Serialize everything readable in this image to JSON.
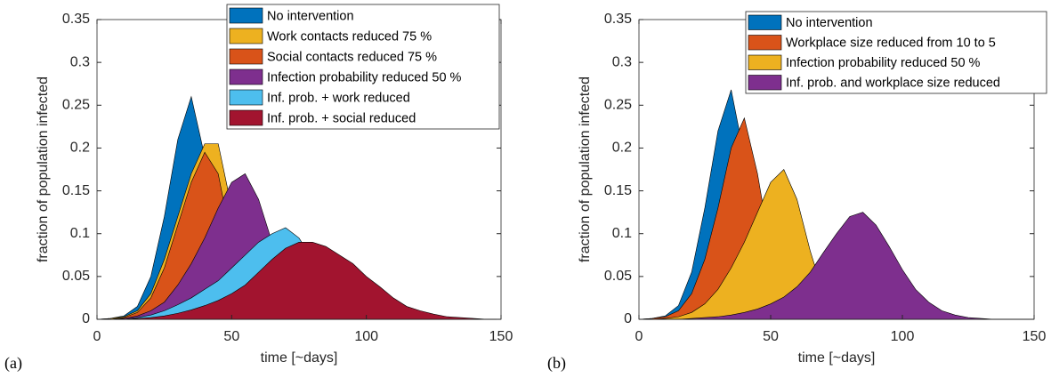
{
  "chart_data": [
    {
      "type": "area",
      "panel_label": "(a)",
      "xlabel": "time [~days]",
      "ylabel": "fraction of population infected",
      "xlim": [
        0,
        150
      ],
      "xticks": [
        0,
        50,
        100,
        150
      ],
      "ylim": [
        0,
        0.35
      ],
      "yticks": [
        0,
        0.05,
        0.1,
        0.15,
        0.2,
        0.25,
        0.3,
        0.35
      ],
      "legend": "upper right",
      "x": [
        0,
        5,
        10,
        15,
        20,
        25,
        30,
        35,
        40,
        45,
        50,
        55,
        60,
        65,
        70,
        75,
        80,
        85,
        90,
        95,
        100,
        105,
        110,
        115,
        120,
        125,
        130,
        135,
        140,
        145,
        150
      ],
      "series": [
        {
          "name": "No intervention",
          "color": "#0072bd",
          "values": [
            0,
            0.001,
            0.004,
            0.015,
            0.05,
            0.12,
            0.21,
            0.26,
            0.19,
            0.08,
            0.02,
            0.003,
            0.001,
            0,
            0,
            0,
            0,
            0,
            0,
            0,
            0,
            0,
            0,
            0,
            0,
            0,
            0,
            0,
            0,
            0,
            0
          ]
        },
        {
          "name": "Work contacts reduced 75 %",
          "color": "#edb120",
          "values": [
            0,
            0.001,
            0.003,
            0.01,
            0.03,
            0.07,
            0.12,
            0.17,
            0.205,
            0.205,
            0.13,
            0.05,
            0.01,
            0.002,
            0,
            0,
            0,
            0,
            0,
            0,
            0,
            0,
            0,
            0,
            0,
            0,
            0,
            0,
            0,
            0,
            0
          ]
        },
        {
          "name": "Social contacts reduced 75 %",
          "color": "#d95319",
          "values": [
            0,
            0,
            0.002,
            0.008,
            0.025,
            0.06,
            0.11,
            0.16,
            0.195,
            0.17,
            0.09,
            0.03,
            0.006,
            0.001,
            0,
            0,
            0,
            0,
            0,
            0,
            0,
            0,
            0,
            0,
            0,
            0,
            0,
            0,
            0,
            0,
            0
          ]
        },
        {
          "name": "Infection probability reduced 50 %",
          "color": "#7e2f8e",
          "values": [
            0,
            0,
            0.001,
            0.004,
            0.01,
            0.02,
            0.04,
            0.065,
            0.095,
            0.13,
            0.16,
            0.17,
            0.14,
            0.09,
            0.04,
            0.01,
            0.003,
            0,
            0,
            0,
            0,
            0,
            0,
            0,
            0,
            0,
            0,
            0,
            0,
            0,
            0
          ]
        },
        {
          "name": "Inf. prob. + work reduced",
          "color": "#4dbeee",
          "values": [
            0,
            0,
            0,
            0.002,
            0.005,
            0.01,
            0.017,
            0.025,
            0.035,
            0.045,
            0.06,
            0.075,
            0.09,
            0.1,
            0.107,
            0.095,
            0.07,
            0.045,
            0.025,
            0.012,
            0.005,
            0.002,
            0,
            0,
            0,
            0,
            0,
            0,
            0,
            0,
            0
          ]
        },
        {
          "name": "Inf. prob. + social reduced",
          "color": "#a2142f",
          "values": [
            0,
            0,
            0,
            0.001,
            0.002,
            0.004,
            0.007,
            0.011,
            0.016,
            0.022,
            0.03,
            0.04,
            0.055,
            0.07,
            0.083,
            0.09,
            0.09,
            0.085,
            0.075,
            0.065,
            0.05,
            0.038,
            0.025,
            0.015,
            0.01,
            0.006,
            0.003,
            0.002,
            0.001,
            0,
            0
          ]
        }
      ]
    },
    {
      "type": "area",
      "panel_label": "(b)",
      "xlabel": "time [~days]",
      "ylabel": "fraction of population infected",
      "xlim": [
        0,
        150
      ],
      "xticks": [
        0,
        50,
        100,
        150
      ],
      "ylim": [
        0,
        0.35
      ],
      "yticks": [
        0,
        0.05,
        0.1,
        0.15,
        0.2,
        0.25,
        0.3,
        0.35
      ],
      "legend": "upper right",
      "x": [
        0,
        5,
        10,
        15,
        20,
        25,
        30,
        35,
        40,
        45,
        50,
        55,
        60,
        65,
        70,
        75,
        80,
        85,
        90,
        95,
        100,
        105,
        110,
        115,
        120,
        125,
        130,
        135,
        140,
        145,
        150
      ],
      "series": [
        {
          "name": "No intervention",
          "color": "#0072bd",
          "values": [
            0,
            0.001,
            0.004,
            0.016,
            0.055,
            0.13,
            0.22,
            0.268,
            0.19,
            0.08,
            0.02,
            0.003,
            0.001,
            0,
            0,
            0,
            0,
            0,
            0,
            0,
            0,
            0,
            0,
            0,
            0,
            0,
            0,
            0,
            0,
            0,
            0
          ]
        },
        {
          "name": "Workplace size reduced from 10 to 5",
          "color": "#d95319",
          "values": [
            0,
            0.001,
            0.003,
            0.01,
            0.03,
            0.07,
            0.13,
            0.2,
            0.235,
            0.17,
            0.08,
            0.02,
            0.004,
            0.001,
            0,
            0,
            0,
            0,
            0,
            0,
            0,
            0,
            0,
            0,
            0,
            0,
            0,
            0,
            0,
            0,
            0
          ]
        },
        {
          "name": "Infection probability reduced 50 %",
          "color": "#edb120",
          "values": [
            0,
            0,
            0.001,
            0.003,
            0.008,
            0.018,
            0.035,
            0.06,
            0.09,
            0.125,
            0.16,
            0.175,
            0.14,
            0.08,
            0.03,
            0.008,
            0.002,
            0,
            0,
            0,
            0,
            0,
            0,
            0,
            0,
            0,
            0,
            0,
            0,
            0,
            0
          ]
        },
        {
          "name": "Inf. prob. and workplace size reduced",
          "color": "#7e2f8e",
          "values": [
            0,
            0,
            0,
            0,
            0.001,
            0.002,
            0.003,
            0.005,
            0.008,
            0.012,
            0.018,
            0.026,
            0.038,
            0.055,
            0.078,
            0.1,
            0.12,
            0.125,
            0.11,
            0.085,
            0.058,
            0.035,
            0.02,
            0.01,
            0.005,
            0.002,
            0.001,
            0,
            0,
            0,
            0
          ]
        }
      ]
    }
  ]
}
